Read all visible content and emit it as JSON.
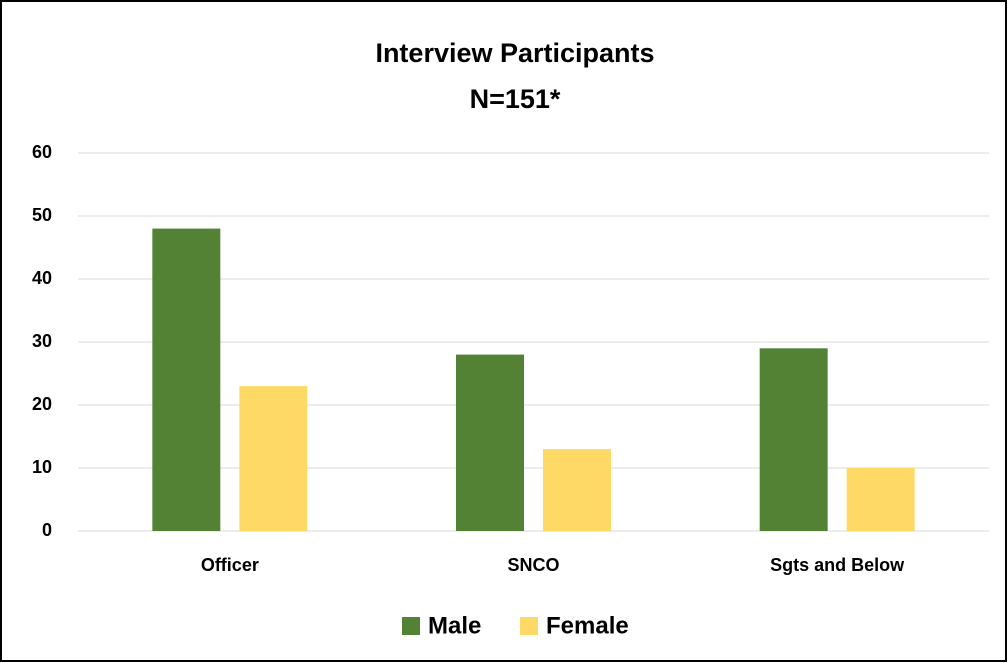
{
  "chart_data": {
    "type": "bar",
    "title": "Interview Participants",
    "subtitle": "N=151*",
    "categories": [
      "Officer",
      "SNCO",
      "Sgts and Below"
    ],
    "series": [
      {
        "name": "Male",
        "color": "#548235",
        "values": [
          48,
          28,
          29
        ]
      },
      {
        "name": "Female",
        "color": "#ffd966",
        "values": [
          23,
          13,
          10
        ]
      }
    ],
    "ylim": [
      0,
      60
    ],
    "yticks": [
      0,
      10,
      20,
      30,
      40,
      50,
      60
    ],
    "grid": true,
    "legend": "bottom"
  }
}
